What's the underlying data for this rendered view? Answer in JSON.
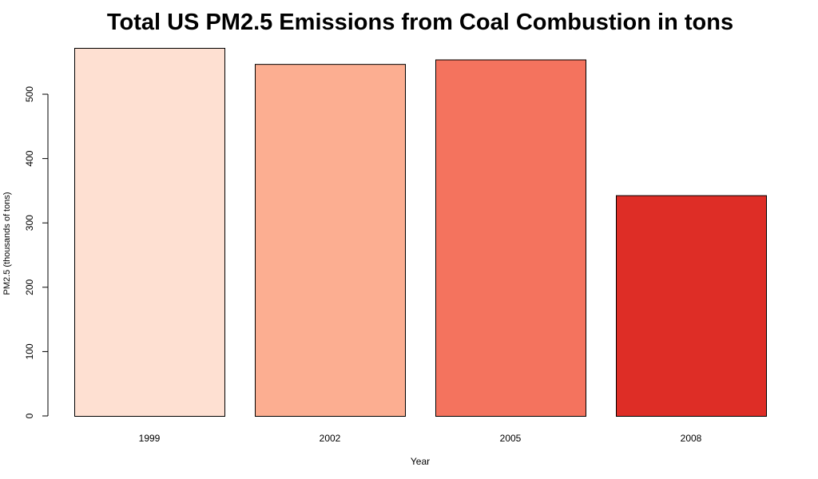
{
  "chart_data": {
    "type": "bar",
    "title": "Total US PM2.5 Emissions from Coal Combustion in tons",
    "xlabel": "Year",
    "ylabel": "PM2.5 (thousands of tons)",
    "categories": [
      "1999",
      "2002",
      "2005",
      "2008"
    ],
    "values": [
      572,
      547,
      554,
      343
    ],
    "bar_colors": [
      "#FEE0D2",
      "#FCAE91",
      "#F4735E",
      "#DE2D26"
    ],
    "ylim": [
      0,
      572
    ],
    "yticks": [
      0,
      100,
      200,
      300,
      400,
      500
    ],
    "grid": false,
    "legend": "none"
  }
}
